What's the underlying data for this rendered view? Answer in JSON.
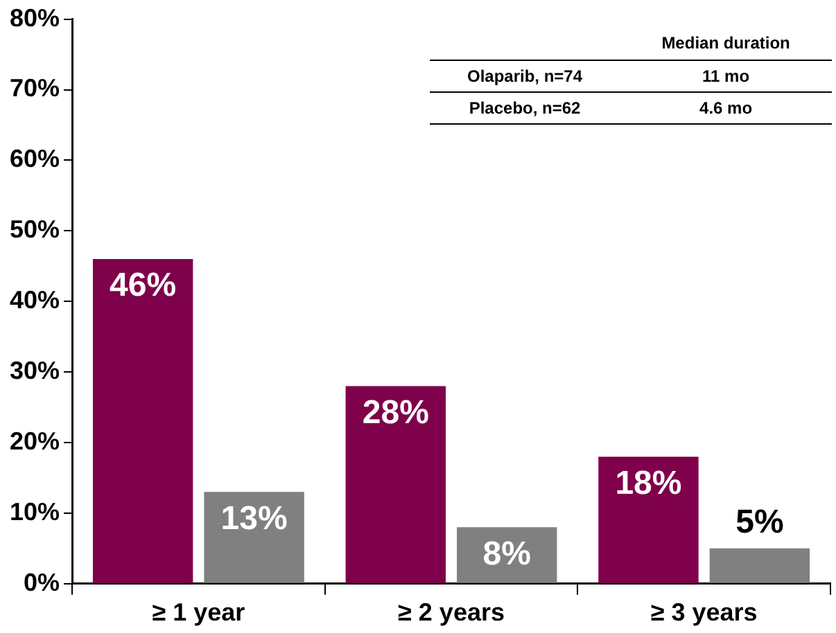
{
  "chart_data": {
    "type": "bar",
    "categories": [
      "≥ 1 year",
      "≥ 2 years",
      "≥ 3 years"
    ],
    "series": [
      {
        "color": "#7f004b",
        "values": [
          46,
          28,
          18
        ],
        "value_labels": [
          "46%",
          "28%",
          "18%"
        ]
      },
      {
        "color": "#808080",
        "values": [
          13,
          8,
          5
        ],
        "value_labels": [
          "13%",
          "8%",
          "5%"
        ]
      }
    ],
    "ylim": [
      0,
      80
    ],
    "yticks": [
      {
        "value": 0,
        "label": "0%"
      },
      {
        "value": 10,
        "label": "10%"
      },
      {
        "value": 20,
        "label": "20%"
      },
      {
        "value": 30,
        "label": "30%"
      },
      {
        "value": 40,
        "label": "40%"
      },
      {
        "value": 50,
        "label": "50%"
      },
      {
        "value": 60,
        "label": "60%"
      },
      {
        "value": 70,
        "label": "70%"
      },
      {
        "value": 80,
        "label": "80%"
      }
    ],
    "annotations": [
      "Median duration",
      "Olaparib, n=74",
      "11 mo",
      "Placebo, n=62",
      "4.6 mo"
    ],
    "grid": false,
    "legend": false
  }
}
